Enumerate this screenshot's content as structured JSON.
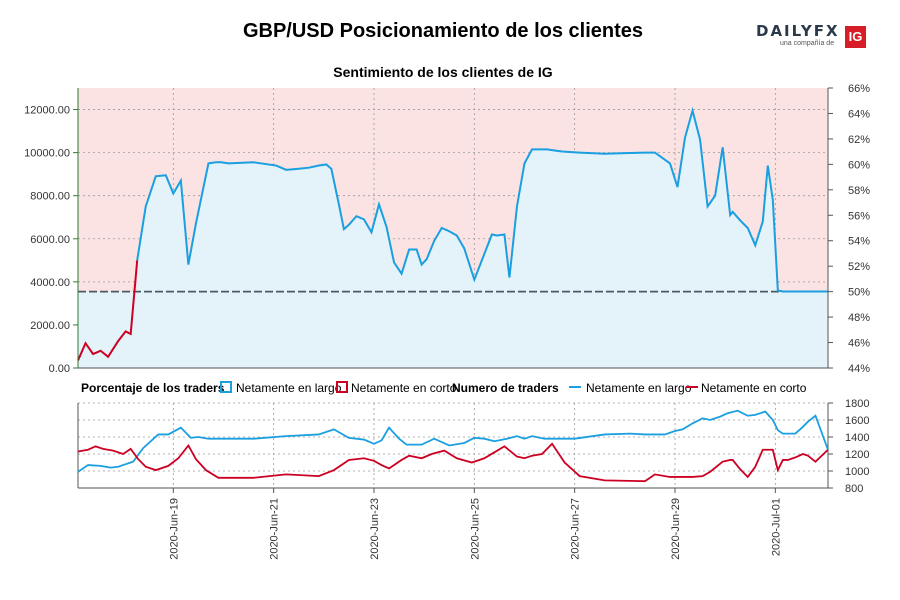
{
  "header": {
    "title": "GBP/USD Posicionamiento de los clientes",
    "brand_word": "DAILYFX",
    "brand_sub": "una compañía de",
    "brand_badge": "IG",
    "brand_colors": {
      "ig_red": "#d71e28",
      "text": "#2b3a4a"
    }
  },
  "colors": {
    "long": "#1a9fe0",
    "short": "#cc0022",
    "long_fill": "#e4f2fa",
    "short_fill": "#fbe3e3",
    "axis_left": "#2e7d32",
    "grid": "#9a9a9a",
    "neutral_line": "#4d5a66"
  },
  "chart_data": [
    {
      "type": "line",
      "title": "Sentimiento de los clientes de IG",
      "left_axis": {
        "ylim": [
          0,
          13000
        ],
        "ticks": [
          "0.00",
          "2000.00",
          "4000.00",
          "6000.00",
          "8000.00",
          "10000.00",
          "12000.00"
        ]
      },
      "right_axis": {
        "ylim": [
          44,
          66
        ],
        "unit": "%",
        "ticks": [
          "44%",
          "46%",
          "48%",
          "50%",
          "52%",
          "54%",
          "56%",
          "58%",
          "60%",
          "62%",
          "64%",
          "66%"
        ]
      },
      "neutral_percent": 50,
      "x_ticks": [
        "2020-Jun-19",
        "2020-Jun-21",
        "2020-Jun-23",
        "2020-Jun-25",
        "2020-Jun-27",
        "2020-Jun-29",
        "2020-Jul-01"
      ],
      "x_tick_positions": [
        1.9,
        3.9,
        5.9,
        7.9,
        9.9,
        11.9,
        13.9
      ],
      "x_range": [
        0,
        14.95
      ],
      "series": [
        {
          "name": "Netamente en corto",
          "x": [
            0,
            0.15,
            0.3,
            0.45,
            0.6,
            0.8,
            0.95,
            1.05,
            1.18
          ],
          "y": [
            350,
            1150,
            650,
            800,
            520,
            1250,
            1700,
            1580,
            5000
          ]
        },
        {
          "name": "Netamente en largo",
          "x": [
            1.18,
            1.35,
            1.55,
            1.75,
            1.9,
            2.05,
            2.2,
            2.35,
            2.6,
            2.75,
            2.85,
            3.0,
            3.5,
            3.95,
            4.15,
            4.4,
            4.6,
            4.7,
            4.8,
            4.95,
            5.05,
            5.2,
            5.3,
            5.4,
            5.55,
            5.7,
            5.85,
            6.0,
            6.15,
            6.3,
            6.45,
            6.6,
            6.75,
            6.85,
            6.95,
            7.1,
            7.25,
            7.4,
            7.55,
            7.7,
            7.9,
            8.1,
            8.25,
            8.35,
            8.5,
            8.6,
            8.75,
            8.9,
            9.05,
            9.15,
            9.35,
            9.5,
            9.65,
            10.0,
            10.5,
            11.0,
            11.3,
            11.5,
            11.8,
            11.95,
            12.1,
            12.25,
            12.4,
            12.55,
            12.7,
            12.85,
            13.0,
            13.05,
            13.2,
            13.35,
            13.5,
            13.65,
            13.75,
            13.85,
            13.95,
            14.05,
            14.15,
            14.3,
            14.45,
            14.55,
            14.7,
            14.85,
            14.95
          ],
          "y": [
            5000,
            7500,
            8900,
            8950,
            8100,
            8700,
            4800,
            6700,
            9500,
            9550,
            9550,
            9500,
            9550,
            9400,
            9200,
            9250,
            9300,
            9350,
            9400,
            9450,
            9250,
            7600,
            6450,
            6650,
            7050,
            6900,
            6300,
            7600,
            6550,
            4900,
            4380,
            5500,
            5500,
            4800,
            5050,
            5900,
            6500,
            6350,
            6150,
            5550,
            4100,
            5300,
            6200,
            6150,
            6200,
            4200,
            7500,
            9500,
            10150,
            10150,
            10150,
            10100,
            10050,
            10000,
            9950,
            9980,
            10000,
            10000,
            9500,
            8400,
            10700,
            11950,
            10600,
            7500,
            8000,
            10250,
            7100,
            7250,
            6850,
            6500,
            5700,
            6800,
            9400,
            7800,
            3600,
            3550,
            3550,
            3550,
            3550,
            3550,
            3550,
            3550,
            3550
          ]
        }
      ]
    },
    {
      "type": "line",
      "title": "Numero de traders",
      "left_legend_title": "Porcentaje de los traders",
      "right_axis": {
        "ylim": [
          800,
          1800
        ],
        "ticks": [
          "800",
          "1000",
          "1200",
          "1400",
          "1600",
          "1800"
        ]
      },
      "series": [
        {
          "name": "Netamente en largo",
          "x": [
            0,
            0.2,
            0.45,
            0.65,
            0.8,
            0.95,
            1.1,
            1.3,
            1.6,
            1.8,
            2.05,
            2.25,
            2.4,
            2.6,
            2.9,
            3.5,
            4.15,
            4.8,
            5.1,
            5.4,
            5.7,
            5.9,
            6.05,
            6.2,
            6.4,
            6.55,
            6.85,
            7.1,
            7.4,
            7.7,
            7.9,
            8.1,
            8.3,
            8.55,
            8.75,
            8.9,
            9.05,
            9.3,
            9.6,
            9.9,
            10.5,
            11.0,
            11.3,
            11.7,
            11.9,
            12.05,
            12.25,
            12.45,
            12.6,
            12.8,
            12.95,
            13.15,
            13.35,
            13.5,
            13.7,
            13.85,
            13.95,
            14.05,
            14.3,
            14.45,
            14.55,
            14.7,
            14.95
          ],
          "y": [
            990,
            1070,
            1060,
            1040,
            1050,
            1080,
            1110,
            1270,
            1430,
            1430,
            1510,
            1390,
            1400,
            1380,
            1380,
            1380,
            1410,
            1430,
            1490,
            1390,
            1370,
            1320,
            1360,
            1510,
            1380,
            1310,
            1310,
            1380,
            1300,
            1330,
            1390,
            1380,
            1350,
            1380,
            1410,
            1380,
            1410,
            1380,
            1380,
            1380,
            1430,
            1440,
            1430,
            1430,
            1470,
            1490,
            1560,
            1620,
            1600,
            1640,
            1680,
            1710,
            1650,
            1660,
            1700,
            1600,
            1480,
            1440,
            1440,
            1520,
            1580,
            1650,
            1250
          ]
        },
        {
          "name": "Netamente en corto",
          "x": [
            0,
            0.2,
            0.35,
            0.5,
            0.7,
            0.9,
            1.05,
            1.2,
            1.35,
            1.55,
            1.8,
            2.0,
            2.2,
            2.35,
            2.55,
            2.8,
            3.5,
            4.15,
            4.8,
            5.1,
            5.4,
            5.7,
            5.9,
            6.05,
            6.2,
            6.45,
            6.6,
            6.85,
            7.05,
            7.3,
            7.55,
            7.85,
            8.1,
            8.3,
            8.5,
            8.75,
            8.9,
            9.05,
            9.25,
            9.45,
            9.7,
            10.0,
            10.5,
            11.3,
            11.5,
            11.8,
            11.95,
            12.1,
            12.25,
            12.45,
            12.6,
            12.85,
            13.0,
            13.05,
            13.2,
            13.35,
            13.5,
            13.65,
            13.75,
            13.85,
            13.95,
            14.05,
            14.15,
            14.3,
            14.45,
            14.55,
            14.7,
            14.95
          ],
          "y": [
            1230,
            1250,
            1290,
            1260,
            1240,
            1200,
            1260,
            1140,
            1050,
            1010,
            1060,
            1150,
            1300,
            1140,
            1010,
            920,
            920,
            960,
            940,
            1010,
            1130,
            1150,
            1120,
            1070,
            1030,
            1130,
            1180,
            1150,
            1200,
            1240,
            1150,
            1100,
            1150,
            1220,
            1290,
            1170,
            1150,
            1180,
            1200,
            1320,
            1100,
            940,
            890,
            880,
            960,
            930,
            930,
            930,
            930,
            940,
            990,
            1110,
            1130,
            1130,
            1020,
            930,
            1050,
            1250,
            1250,
            1250,
            1010,
            1130,
            1130,
            1160,
            1200,
            1180,
            1110,
            1250
          ]
        }
      ]
    }
  ]
}
